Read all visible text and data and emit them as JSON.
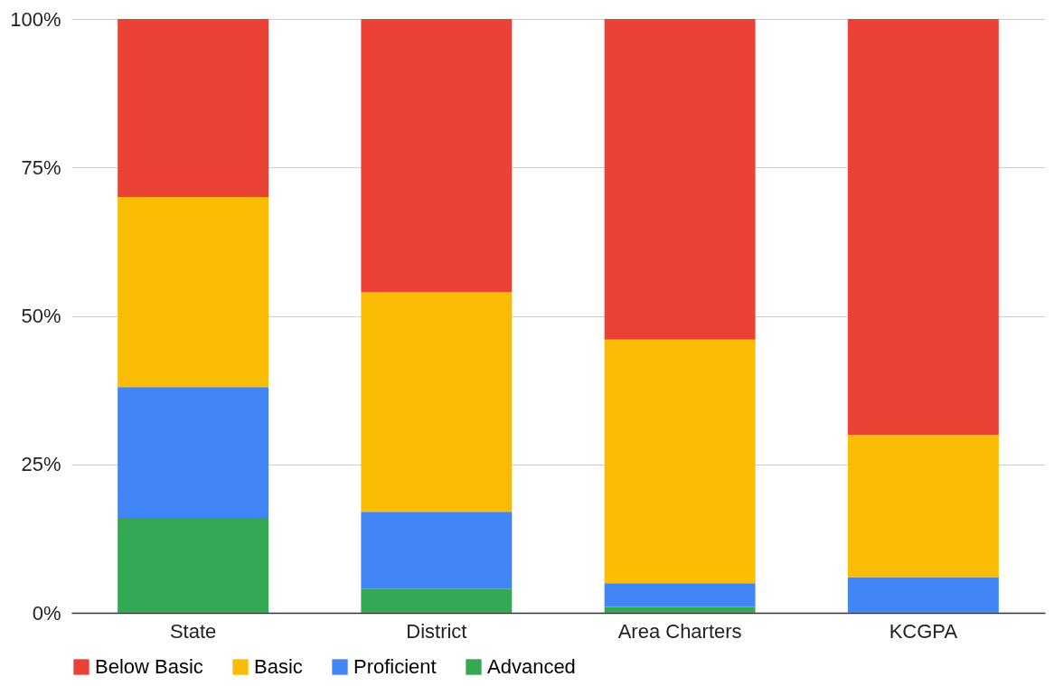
{
  "chart_data": {
    "type": "bar",
    "stacked": true,
    "categories": [
      "State",
      "District",
      "Area Charters",
      "KCGPA"
    ],
    "series": [
      {
        "name": "Advanced",
        "color": "#34a853",
        "values": [
          16,
          4,
          1,
          0
        ]
      },
      {
        "name": "Proficient",
        "color": "#4285f4",
        "values": [
          22,
          13,
          4,
          6
        ]
      },
      {
        "name": "Basic",
        "color": "#fbbc04",
        "values": [
          32,
          37,
          41,
          24
        ]
      },
      {
        "name": "Below Basic",
        "color": "#ea4335",
        "values": [
          30,
          46,
          54,
          70
        ]
      }
    ],
    "ylim": [
      0,
      100
    ],
    "yticks": [
      {
        "value": 0,
        "label": "0%"
      },
      {
        "value": 25,
        "label": "25%"
      },
      {
        "value": 50,
        "label": "50%"
      },
      {
        "value": 75,
        "label": "75%"
      },
      {
        "value": 100,
        "label": "100%"
      }
    ],
    "grid": "y",
    "legend": "bottom"
  }
}
